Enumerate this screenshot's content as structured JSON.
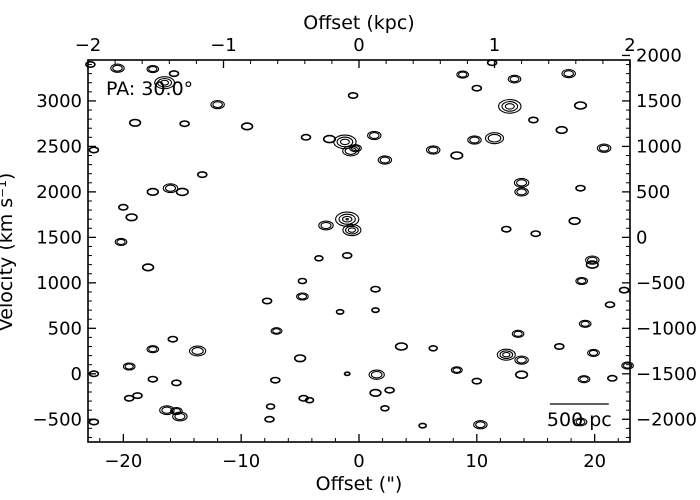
{
  "chart_data": {
    "type": "contour",
    "annotation": "PA: 30.0°",
    "scale_bar_label": "500 pc",
    "scale_bar_arcsec": 5,
    "axes": {
      "bottom": {
        "label": "Offset (\")",
        "range": [
          -23,
          23
        ],
        "ticks": [
          -20,
          -10,
          0,
          10,
          20
        ]
      },
      "top": {
        "label": "Offset (kpc)",
        "range": [
          -2.0,
          2.0
        ],
        "ticks": [
          -2,
          -1,
          0,
          1,
          2
        ],
        "tick_labels": [
          "−2",
          "−1",
          "0",
          "1",
          "2"
        ]
      },
      "left": {
        "label": "Velocity (km s⁻¹)",
        "range": [
          -750,
          3450
        ],
        "ticks": [
          -500,
          0,
          500,
          1000,
          1500,
          2000,
          2500,
          3000
        ],
        "tick_labels": [
          "−500",
          "0",
          "500",
          "1000",
          "1500",
          "2000",
          "2500",
          "3000"
        ]
      },
      "right": {
        "range": [
          -2250,
          1950
        ],
        "ticks": [
          -2000,
          -1500,
          -1000,
          -500,
          0,
          500,
          1000,
          1500,
          2000
        ],
        "tick_labels": [
          "−2000",
          "−1500",
          "−1000",
          "−500",
          "0",
          "500",
          "1000",
          "1500",
          "2000"
        ]
      }
    },
    "contour_blobs": [
      [
        -22.8,
        3400,
        1.0,
        1
      ],
      [
        -20.5,
        3360,
        1.5,
        2
      ],
      [
        -17.5,
        3350,
        1.3,
        2
      ],
      [
        -16.5,
        3200,
        2.2,
        3
      ],
      [
        -15.7,
        3300,
        1.0,
        1
      ],
      [
        -12.0,
        2960,
        1.5,
        2
      ],
      [
        -19.0,
        2760,
        1.2,
        1
      ],
      [
        -14.8,
        2750,
        1.0,
        1
      ],
      [
        -9.5,
        2720,
        1.2,
        1
      ],
      [
        -4.5,
        2600,
        1.0,
        1
      ],
      [
        -2.5,
        2580,
        1.3,
        1
      ],
      [
        -1.2,
        2550,
        2.5,
        3
      ],
      [
        -0.7,
        2450,
        1.8,
        2
      ],
      [
        -0.3,
        2480,
        1.3,
        2
      ],
      [
        1.3,
        2620,
        1.5,
        2
      ],
      [
        2.2,
        2350,
        1.5,
        2
      ],
      [
        6.3,
        2460,
        1.5,
        2
      ],
      [
        8.3,
        2400,
        1.3,
        1
      ],
      [
        9.8,
        2570,
        1.5,
        2
      ],
      [
        11.5,
        2590,
        2.0,
        2
      ],
      [
        12.8,
        2940,
        2.5,
        3
      ],
      [
        13.2,
        3240,
        1.4,
        2
      ],
      [
        14.8,
        2790,
        1.0,
        1
      ],
      [
        17.2,
        2680,
        1.2,
        1
      ],
      [
        18.8,
        2950,
        1.3,
        1
      ],
      [
        20.8,
        2480,
        1.5,
        2
      ],
      [
        17.8,
        3300,
        1.5,
        2
      ],
      [
        11.3,
        3420,
        1.0,
        1
      ],
      [
        8.8,
        3290,
        1.3,
        2
      ],
      [
        10.0,
        3140,
        1.0,
        1
      ],
      [
        -0.5,
        3060,
        1.0,
        1
      ],
      [
        -22.5,
        2460,
        1.0,
        1
      ],
      [
        -13.3,
        2190,
        1.0,
        1
      ],
      [
        -16.0,
        2040,
        1.6,
        2
      ],
      [
        -15.0,
        2000,
        1.3,
        1
      ],
      [
        -17.5,
        2000,
        1.2,
        1
      ],
      [
        -20.0,
        1830,
        1.0,
        1
      ],
      [
        -19.3,
        1720,
        1.2,
        1
      ],
      [
        -1.0,
        1700,
        2.6,
        4
      ],
      [
        -0.6,
        1580,
        2.0,
        3
      ],
      [
        -2.8,
        1630,
        1.6,
        2
      ],
      [
        -20.2,
        1450,
        1.3,
        2
      ],
      [
        -17.9,
        1170,
        1.2,
        1
      ],
      [
        -1.0,
        1300,
        1.0,
        1
      ],
      [
        -3.4,
        1270,
        0.9,
        1
      ],
      [
        13.8,
        2100,
        1.6,
        2
      ],
      [
        13.8,
        2000,
        1.5,
        2
      ],
      [
        12.5,
        1590,
        1.0,
        1
      ],
      [
        15.0,
        1540,
        1.0,
        1
      ],
      [
        18.8,
        2040,
        1.0,
        1
      ],
      [
        18.3,
        1680,
        1.2,
        1
      ],
      [
        19.8,
        1250,
        1.5,
        2
      ],
      [
        19.8,
        1200,
        1.3,
        1
      ],
      [
        18.9,
        1020,
        1.3,
        2
      ],
      [
        22.5,
        920,
        1.0,
        1
      ],
      [
        21.3,
        760,
        1.0,
        1
      ],
      [
        -4.8,
        1020,
        0.9,
        1
      ],
      [
        -4.8,
        850,
        1.3,
        2
      ],
      [
        -7.8,
        800,
        1.0,
        1
      ],
      [
        1.4,
        930,
        1.0,
        1
      ],
      [
        1.4,
        700,
        0.8,
        1
      ],
      [
        -1.6,
        680,
        0.8,
        1
      ],
      [
        -7.0,
        470,
        1.2,
        2
      ],
      [
        19.2,
        550,
        1.3,
        2
      ],
      [
        -15.8,
        380,
        1.0,
        1
      ],
      [
        -17.5,
        270,
        1.3,
        2
      ],
      [
        -13.7,
        250,
        1.8,
        2
      ],
      [
        -19.5,
        80,
        1.3,
        2
      ],
      [
        -17.5,
        -60,
        1.0,
        1
      ],
      [
        -15.5,
        -100,
        1.0,
        1
      ],
      [
        3.6,
        300,
        1.3,
        1
      ],
      [
        6.3,
        280,
        0.9,
        1
      ],
      [
        13.5,
        440,
        1.3,
        2
      ],
      [
        12.5,
        210,
        2.0,
        3
      ],
      [
        13.8,
        150,
        1.5,
        2
      ],
      [
        8.3,
        40,
        1.2,
        2
      ],
      [
        10.0,
        -80,
        1.0,
        1
      ],
      [
        13.8,
        -10,
        1.3,
        1
      ],
      [
        17.0,
        300,
        1.0,
        1
      ],
      [
        19.9,
        230,
        1.3,
        2
      ],
      [
        22.8,
        90,
        1.3,
        2
      ],
      [
        21.5,
        -50,
        1.0,
        1
      ],
      [
        19.1,
        -60,
        1.3,
        2
      ],
      [
        1.5,
        -10,
        1.7,
        2
      ],
      [
        -7.1,
        -70,
        1.0,
        1
      ],
      [
        -5.0,
        170,
        1.2,
        1
      ],
      [
        -4.7,
        -270,
        1.0,
        1
      ],
      [
        -4.2,
        -290,
        0.9,
        1
      ],
      [
        -7.5,
        -360,
        0.9,
        1
      ],
      [
        -7.6,
        -500,
        1.0,
        1
      ],
      [
        -18.8,
        -240,
        1.0,
        1
      ],
      [
        -19.5,
        -270,
        1.0,
        1
      ],
      [
        -16.3,
        -400,
        1.6,
        2
      ],
      [
        -15.5,
        -410,
        1.3,
        2
      ],
      [
        -15.2,
        -470,
        1.6,
        2
      ],
      [
        -22.5,
        -530,
        1.0,
        1
      ],
      [
        -22.5,
        0,
        1.0,
        1
      ],
      [
        1.4,
        -210,
        1.2,
        1
      ],
      [
        2.6,
        -180,
        1.0,
        1
      ],
      [
        2.2,
        -380,
        0.9,
        1
      ],
      [
        5.4,
        -570,
        0.8,
        1
      ],
      [
        10.3,
        -560,
        1.5,
        2
      ],
      [
        18.8,
        -530,
        1.4,
        2
      ],
      [
        -1.0,
        0,
        0.6,
        1
      ]
    ]
  }
}
